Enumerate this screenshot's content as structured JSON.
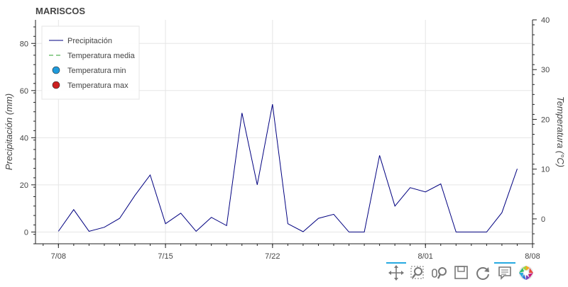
{
  "chart_data": {
    "type": "line",
    "title": "MARISCOS",
    "ylabel_left": "Precipitación (mm)",
    "ylabel_right": "Temperatura (°C)",
    "xlabel": "",
    "x_ticks": [
      "7/08",
      "7/15",
      "7/22",
      "8/01",
      "8/08"
    ],
    "x_tick_dates": [
      "2024-07-08",
      "2024-07-15",
      "2024-07-22",
      "2024-08-01",
      "2024-08-08"
    ],
    "y_left_ticks": [
      0,
      20,
      40,
      60,
      80
    ],
    "y_right_ticks": [
      0,
      10,
      20,
      30,
      40
    ],
    "ylim_left": [
      -5,
      90
    ],
    "ylim_right": [
      -5,
      40
    ],
    "xlim": [
      "2024-07-06 12:00",
      "2024-08-08"
    ],
    "grid": true,
    "legend_position": "top-left",
    "legend": [
      {
        "label": "Precipitación",
        "style": "solid-line",
        "color": "#000080"
      },
      {
        "label": "Temperatura media",
        "style": "dashed-line",
        "color": "#2ca02c"
      },
      {
        "label": "Temperatura min",
        "style": "circle",
        "color": "#1f9bdc"
      },
      {
        "label": "Temperatura max",
        "style": "circle",
        "color": "#cc2020"
      }
    ],
    "series": [
      {
        "name": "Precipitación",
        "color": "#000080",
        "x": [
          "2024-07-08",
          "2024-07-09",
          "2024-07-10",
          "2024-07-11",
          "2024-07-12",
          "2024-07-13",
          "2024-07-14",
          "2024-07-15",
          "2024-07-16",
          "2024-07-17",
          "2024-07-18",
          "2024-07-19",
          "2024-07-20",
          "2024-07-21",
          "2024-07-22",
          "2024-07-23",
          "2024-07-24",
          "2024-07-25",
          "2024-07-26",
          "2024-07-27",
          "2024-07-28",
          "2024-07-29",
          "2024-07-30",
          "2024-07-31",
          "2024-08-01",
          "2024-08-02",
          "2024-08-03",
          "2024-08-04",
          "2024-08-05",
          "2024-08-06",
          "2024-08-07"
        ],
        "values": [
          0.3,
          9.5,
          0.3,
          2.0,
          5.8,
          15.5,
          24.2,
          3.5,
          8.0,
          0.3,
          6.2,
          2.7,
          50.5,
          20.0,
          54.2,
          3.5,
          0.1,
          5.8,
          7.5,
          0.0,
          0.0,
          32.5,
          11.0,
          18.8,
          17.0,
          20.4,
          0.0,
          0.0,
          0.0,
          8.2,
          26.8
        ]
      }
    ]
  },
  "toolbar": {
    "tools": [
      "pan-icon",
      "box-zoom-icon",
      "wheel-zoom-icon",
      "save-icon",
      "reset-icon",
      "hover-icon",
      "bokeh-logo-icon"
    ]
  }
}
